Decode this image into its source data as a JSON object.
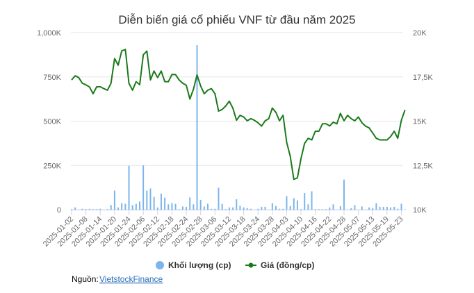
{
  "chart_data": {
    "type": "bar+line",
    "title": "Diễn biến giá cổ phiếu VNF từ đầu năm 2025",
    "x_tick_labels": [
      "2025-01-02",
      "2025-01-08",
      "2025-01-14",
      "2025-01-20",
      "2025-01-24",
      "2025-02-06",
      "2025-02-12",
      "2025-02-18",
      "2025-02-24",
      "2025-02-28",
      "2025-03-06",
      "2025-03-12",
      "2025-03-18",
      "2025-03-24",
      "2025-03-28",
      "2025-04-03",
      "2025-04-10",
      "2025-04-16",
      "2025-04-22",
      "2025-04-28",
      "2025-05-07",
      "2025-05-13",
      "2025-05-19",
      "2025-05-23"
    ],
    "left_axis": {
      "ticks": [
        "0",
        "250K",
        "500K",
        "750K",
        "1,000K"
      ],
      "range": [
        0,
        1000000
      ]
    },
    "right_axis": {
      "ticks": [
        "10K",
        "12,5K",
        "15K",
        "17,5K",
        "20K"
      ],
      "range": [
        10000,
        20000
      ]
    },
    "grid": true,
    "legend_position": "bottom",
    "series": [
      {
        "name": "Khối lượng (cp)",
        "type": "bar",
        "axis": "left",
        "color": "#7cb5ec",
        "values": [
          3000,
          13000,
          0,
          5000,
          3000,
          5000,
          3000,
          3000,
          5000,
          0,
          3000,
          26000,
          108000,
          13000,
          37000,
          33000,
          248000,
          26000,
          33000,
          46000,
          250000,
          108000,
          120000,
          72000,
          13000,
          91000,
          68000,
          30000,
          37000,
          33000,
          3000,
          18000,
          16000,
          69000,
          30000,
          929000,
          55000,
          18000,
          33000,
          5000,
          5000,
          124000,
          33000,
          3000,
          13000,
          13000,
          59000,
          22000,
          13000,
          9000,
          5000,
          0,
          5000,
          16000,
          16000,
          0,
          37000,
          20000,
          5000,
          5000,
          77000,
          20000,
          65000,
          52000,
          3000,
          94000,
          30000,
          104000,
          3000,
          3000,
          3000,
          3000,
          13000,
          30000,
          0,
          20000,
          170000,
          0,
          9000,
          26000,
          0,
          18000,
          0,
          13000,
          9000,
          37000,
          16000,
          16000,
          16000,
          13000,
          16000,
          5000,
          33000,
          3000
        ]
      },
      {
        "name": "Giá (đồng/cp)",
        "type": "line",
        "axis": "right",
        "color": "#1a7a1a",
        "values": [
          17330,
          17560,
          17460,
          17140,
          17050,
          16930,
          16550,
          16940,
          16940,
          16840,
          16750,
          17140,
          18540,
          18160,
          18970,
          19050,
          17140,
          16750,
          17230,
          17060,
          18750,
          18960,
          17330,
          17830,
          17460,
          17830,
          17230,
          17230,
          17640,
          17630,
          17330,
          17140,
          17030,
          16250,
          16810,
          17610,
          16990,
          16550,
          16750,
          16840,
          16550,
          15570,
          15660,
          15860,
          16130,
          15730,
          15050,
          15330,
          15240,
          15020,
          15140,
          15050,
          14910,
          14720,
          15020,
          15140,
          15740,
          15500,
          15020,
          15330,
          13800,
          13020,
          11710,
          11800,
          12890,
          13740,
          14030,
          13940,
          14430,
          14430,
          14850,
          14850,
          14730,
          14940,
          14850,
          15440,
          15020,
          15330,
          15140,
          15020,
          15240,
          14910,
          14720,
          14620,
          14330,
          14030,
          13940,
          13940,
          13940,
          14130,
          14430,
          14030,
          15050,
          15630
        ]
      }
    ]
  },
  "source": {
    "label": "Nguồn:",
    "link": "VietstockFinance"
  }
}
